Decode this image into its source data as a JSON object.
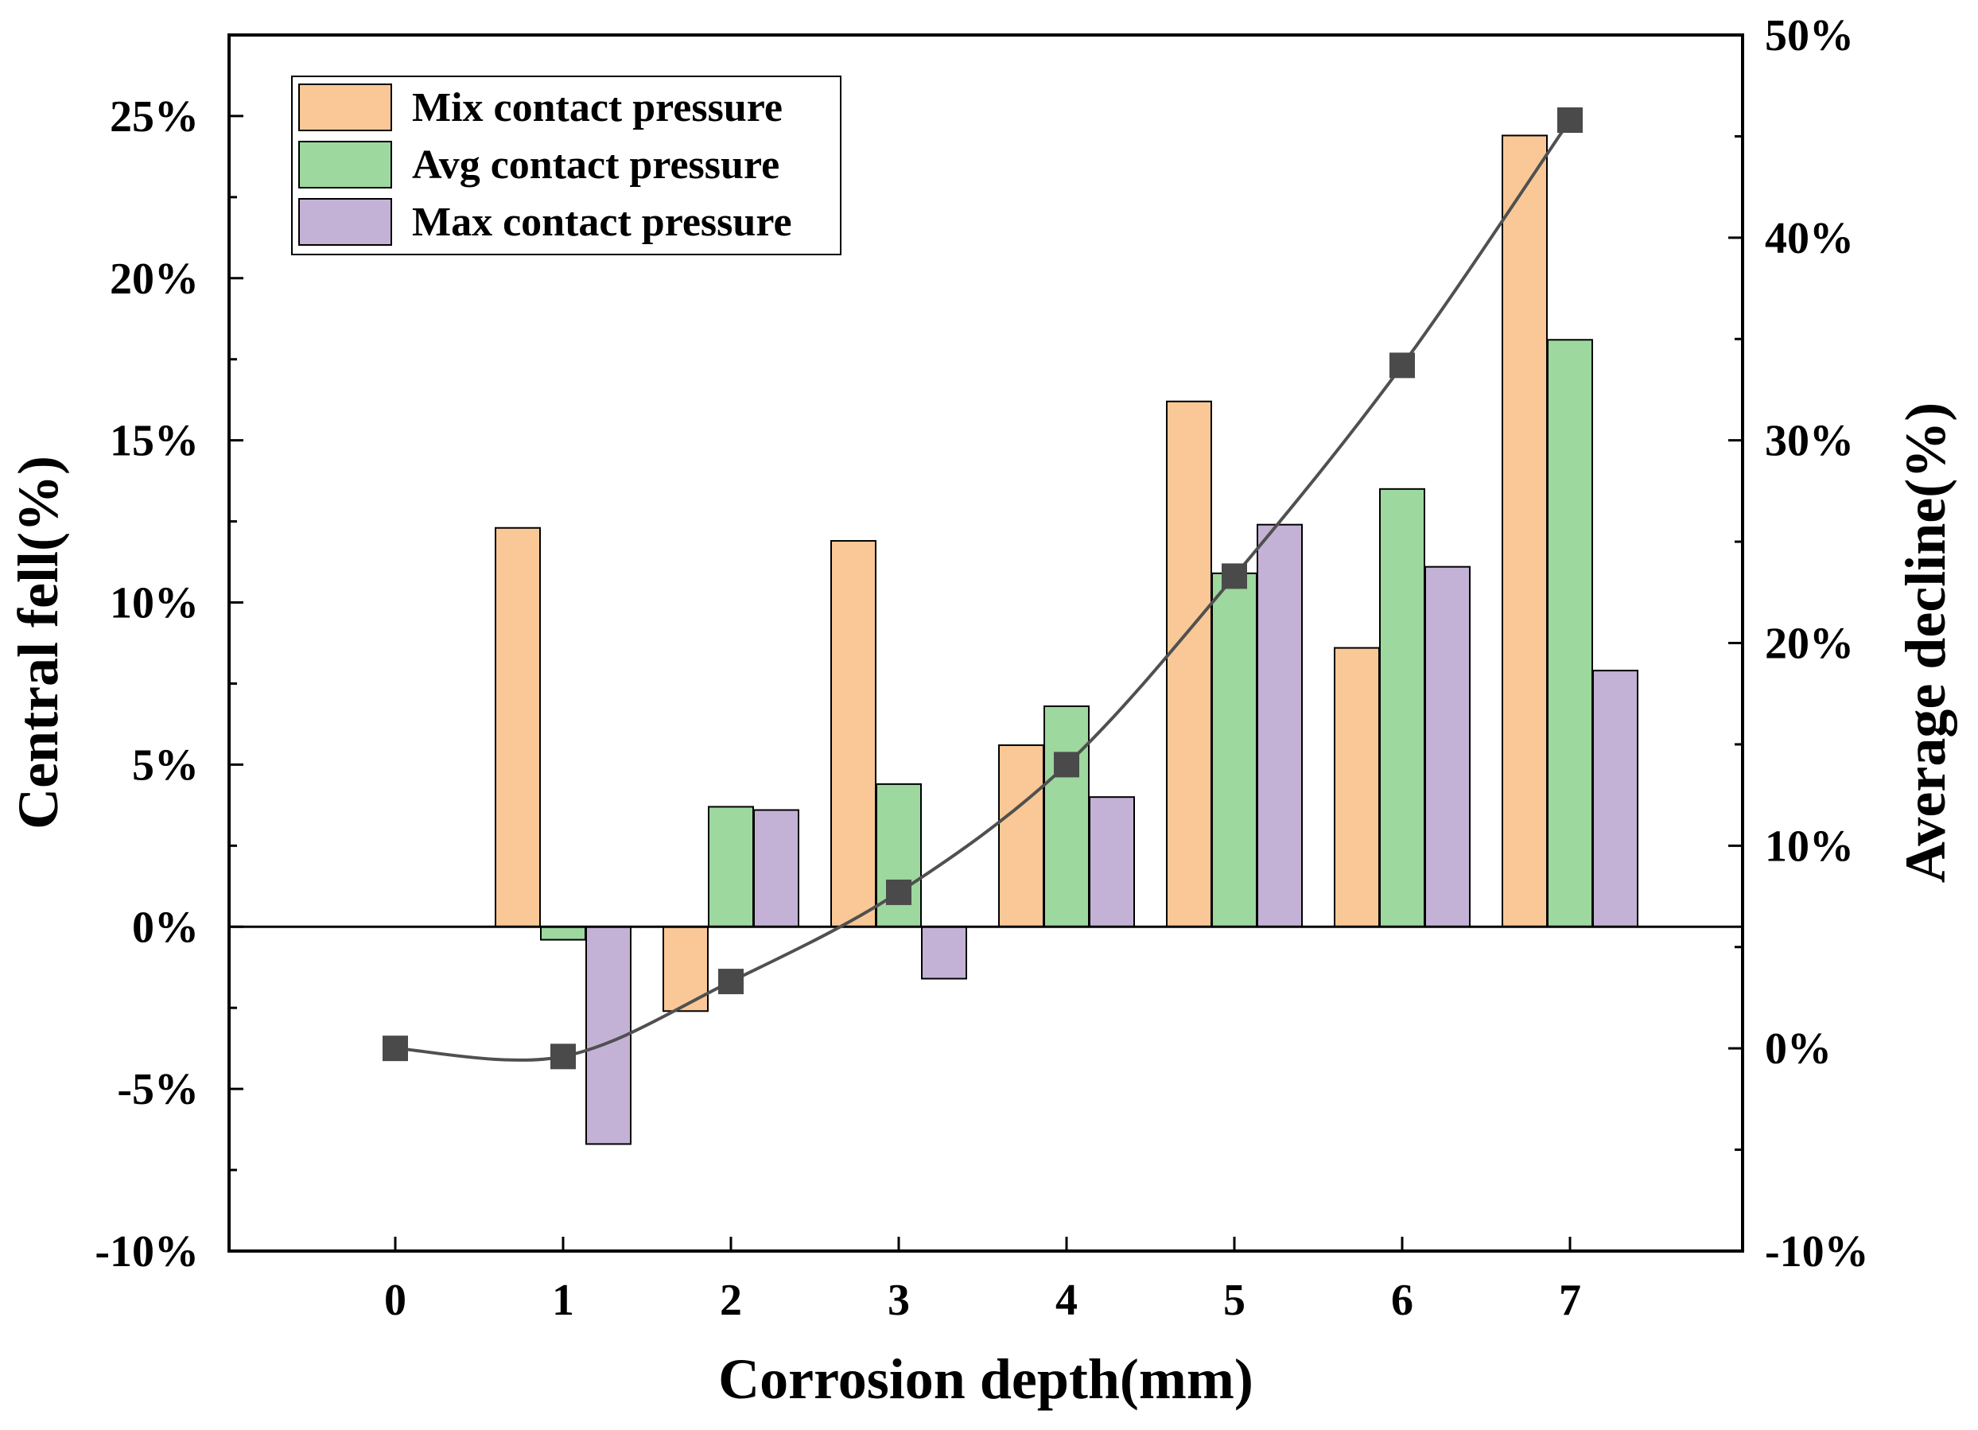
{
  "chart_data": {
    "type": "bar",
    "xlabel": "Corrosion depth(mm)",
    "ylabel": "Central fell(%)",
    "y2label": "Average decline(%)",
    "categories": [
      "0",
      "1",
      "2",
      "3",
      "4",
      "5",
      "6",
      "7"
    ],
    "ylim": [
      -10,
      27.5
    ],
    "y2lim": [
      -10,
      50
    ],
    "yticks": [
      -10,
      -5,
      0,
      5,
      10,
      15,
      20,
      25
    ],
    "ytick_labels": [
      "-10%",
      "-5%",
      "0%",
      "5%",
      "10%",
      "15%",
      "20%",
      "25%"
    ],
    "y2ticks": [
      -10,
      0,
      10,
      20,
      30,
      40,
      50
    ],
    "y2tick_labels": [
      "-10%",
      "0%",
      "10%",
      "20%",
      "30%",
      "40%",
      "50%"
    ],
    "series": [
      {
        "name": "Mix contact pressure",
        "color": "#f9c896",
        "values": [
          0,
          12.3,
          -2.6,
          11.9,
          5.6,
          16.2,
          8.6,
          24.4
        ]
      },
      {
        "name": "Avg contact pressure",
        "color": "#9dd89e",
        "values": [
          0,
          -0.4,
          3.7,
          4.4,
          6.8,
          10.9,
          13.5,
          18.1
        ]
      },
      {
        "name": "Max contact pressure",
        "color": "#c4b2d6",
        "values": [
          0,
          -6.7,
          3.6,
          -1.6,
          4.0,
          12.4,
          11.1,
          7.9
        ]
      }
    ],
    "line": {
      "name": "Average decline",
      "axis": "right",
      "color": "#505050",
      "values": [
        0,
        -0.4,
        3.3,
        7.7,
        14.0,
        23.3,
        33.7,
        45.8
      ]
    },
    "legend_position": "top-left",
    "grid": false
  }
}
